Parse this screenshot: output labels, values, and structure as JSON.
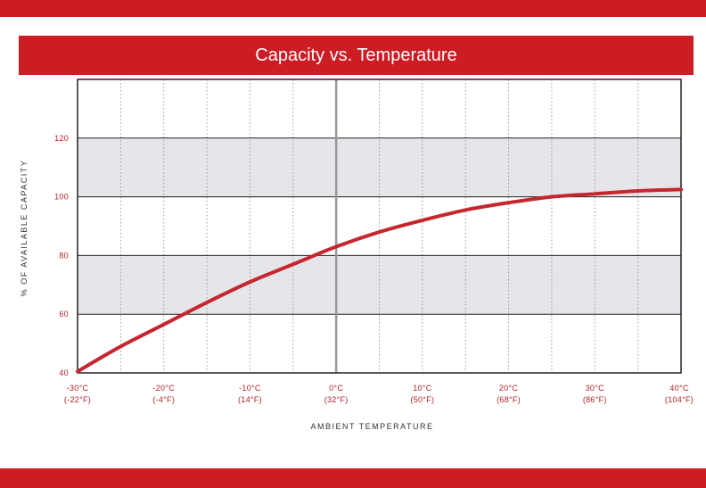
{
  "colors": {
    "brand_red": "#cc1c24",
    "curve": "#c6262e",
    "band": "#e6e6ea",
    "tick_text": "#b01f24",
    "axis_text": "#333333"
  },
  "chart_data": {
    "type": "line",
    "title": "Capacity vs. Temperature",
    "xlabel": "AMBIENT TEMPERATURE",
    "ylabel": "% OF AVAILABLE CAPACITY",
    "xlim": [
      -30,
      40
    ],
    "ylim": [
      40,
      140
    ],
    "y_ticks": [
      40,
      60,
      80,
      100,
      120
    ],
    "y_tick_labels": [
      "40",
      "60",
      "80",
      "100",
      "120"
    ],
    "x_ticks": [
      {
        "celsius": "-30°C",
        "fahrenheit": "(-22°F)",
        "value": -30
      },
      {
        "celsius": "-20°C",
        "fahrenheit": "(-4°F)",
        "value": -20
      },
      {
        "celsius": "-10°C",
        "fahrenheit": "(14°F)",
        "value": -10
      },
      {
        "celsius": "0°C",
        "fahrenheit": "(32°F)",
        "value": 0
      },
      {
        "celsius": "10°C",
        "fahrenheit": "(50°F)",
        "value": 10
      },
      {
        "celsius": "20°C",
        "fahrenheit": "(68°F)",
        "value": 20
      },
      {
        "celsius": "30°C",
        "fahrenheit": "(86°F)",
        "value": 30
      },
      {
        "celsius": "40°C",
        "fahrenheit": "(104°F)",
        "value": 40
      }
    ],
    "shaded_bands": [
      [
        60,
        80
      ],
      [
        100,
        120
      ]
    ],
    "grid": true,
    "series": [
      {
        "x": [
          -30,
          -25,
          -20,
          -15,
          -10,
          -5,
          0,
          5,
          10,
          15,
          20,
          25,
          30,
          35,
          40
        ],
        "y": [
          40.5,
          49,
          56.5,
          64,
          71,
          77,
          83,
          88,
          92,
          95.5,
          98,
          100,
          101,
          102,
          102.5
        ]
      }
    ]
  }
}
